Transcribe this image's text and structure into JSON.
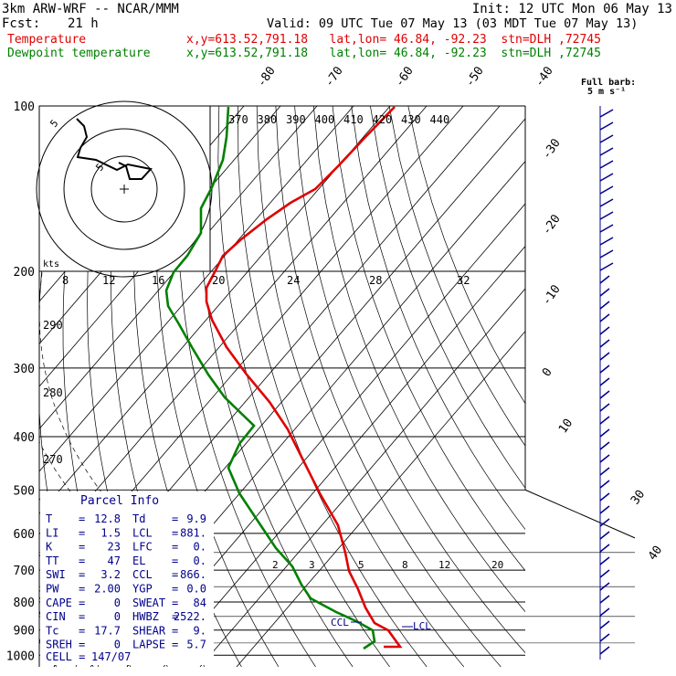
{
  "header": {
    "model": "3km ARW-WRF -- NCAR/MMM",
    "init": "Init: 12 UTC Mon 06 May 13",
    "fcst_label": "Fcst:",
    "fcst_value": "21 h",
    "valid": "Valid: 09 UTC Tue 07 May 13 (03 MDT Tue 07 May 13)",
    "temp_label": "Temperature",
    "temp_loc": "x,y=613.52,791.18   lat,lon= 46.84, -92.23  stn=DLH ,72745",
    "dew_label": "Dewpoint temperature",
    "dew_loc": "x,y=613.52,791.18   lat,lon= 46.84, -92.23  stn=DLH ,72745"
  },
  "barb_legend": {
    "line1": "Full barb:",
    "line2": "5 m s⁻¹"
  },
  "parcel": {
    "title": "Parcel Info",
    "rows": [
      {
        "l1": "T",
        "v1": "12.8",
        "l2": "Td",
        "v2": "9.9"
      },
      {
        "l1": "LI",
        "v1": "1.5",
        "l2": "LCL",
        "v2": "881."
      },
      {
        "l1": "K",
        "v1": "23",
        "l2": "LFC",
        "v2": "0."
      },
      {
        "l1": "TT",
        "v1": "47",
        "l2": "EL",
        "v2": "0."
      },
      {
        "l1": "SWI",
        "v1": "3.2",
        "l2": "CCL",
        "v2": "866."
      },
      {
        "l1": "PW",
        "v1": "2.00",
        "l2": "YGP",
        "v2": "0.0"
      },
      {
        "l1": "CAPE",
        "v1": "0",
        "l2": "SWEAT",
        "v2": "84"
      },
      {
        "l1": "CIN",
        "v1": "0",
        "l2": "HWBZ",
        "v2": "2522."
      },
      {
        "l1": "Tc",
        "v1": "17.7",
        "l2": "SHEAR",
        "v2": "9."
      },
      {
        "l1": "SREH",
        "v1": "0",
        "l2": "LAPSE",
        "v2": "5.7"
      }
    ],
    "cell_label": "CELL =",
    "cell_value": "147/07"
  },
  "chart_data": {
    "type": "line",
    "chart_kind": "skew-T log-p",
    "pressure_levels": [
      "100",
      "200",
      "300",
      "400",
      "500",
      "600",
      "700",
      "800",
      "900",
      "1000"
    ],
    "isotherm_labels": [
      "-80",
      "-70",
      "-60",
      "-50",
      "-40",
      "-30",
      "-20",
      "-10",
      "0",
      "10",
      "30",
      "40"
    ],
    "theta_labels": [
      "370",
      "380",
      "390",
      "400",
      "410",
      "420",
      "430",
      "440"
    ],
    "theta_left_labels": [
      "290",
      "280",
      "270"
    ],
    "hodo_speed_labels": [
      "8",
      "12",
      "16",
      "20",
      "24",
      "28",
      "32"
    ],
    "hodo_unit": "kts",
    "hodo_ring_labels": [
      "5",
      "5"
    ],
    "mixing_ratio_labels": [
      "2",
      "3",
      "5",
      "8",
      "12",
      "20"
    ],
    "annotations": {
      "ccl": "CCL",
      "lcl": "LCL"
    },
    "series": [
      {
        "name": "Temperature",
        "color": "#e00000",
        "pressure": [
          1000,
          985,
          965,
          950,
          930,
          900,
          875,
          850,
          800,
          750,
          700,
          650,
          600,
          550,
          500,
          450,
          400,
          350,
          300,
          250,
          225,
          200,
          190,
          180,
          170,
          160,
          150,
          140,
          130,
          120,
          110,
          100
        ],
        "values": [
          10.0,
          10.5,
          12.8,
          12.5,
          11.7,
          10.2,
          8.8,
          7.2,
          4.2,
          1.0,
          -2.6,
          -5.9,
          -9.4,
          -13.9,
          -18.5,
          -24.2,
          -30.4,
          -37.2,
          -44.8,
          -53.0,
          -57.0,
          -59.0,
          -58.5,
          -58.0,
          -58.0,
          -58.5,
          -59.0,
          -59.5,
          -60.0,
          -61.0,
          -62.0,
          -63.0
        ]
      },
      {
        "name": "Dewpoint temperature",
        "color": "#008000",
        "pressure": [
          1000,
          985,
          965,
          950,
          930,
          900,
          875,
          850,
          800,
          750,
          700,
          650,
          600,
          550,
          500,
          450,
          400,
          380,
          350,
          300,
          250,
          225,
          200,
          180,
          160,
          140,
          120,
          100
        ],
        "values": [
          9.5,
          9.7,
          9.9,
          9.5,
          9.0,
          7.5,
          5.5,
          2.0,
          -3.0,
          -7.0,
          -11.5,
          -16.0,
          -21.0,
          -26.5,
          -33.0,
          -39.5,
          -40.0,
          -38.0,
          -45.0,
          -55.0,
          -63.0,
          -68.0,
          -70.0,
          -72.0,
          -76.0,
          -78.0,
          -80.0,
          -82.0
        ]
      }
    ]
  }
}
